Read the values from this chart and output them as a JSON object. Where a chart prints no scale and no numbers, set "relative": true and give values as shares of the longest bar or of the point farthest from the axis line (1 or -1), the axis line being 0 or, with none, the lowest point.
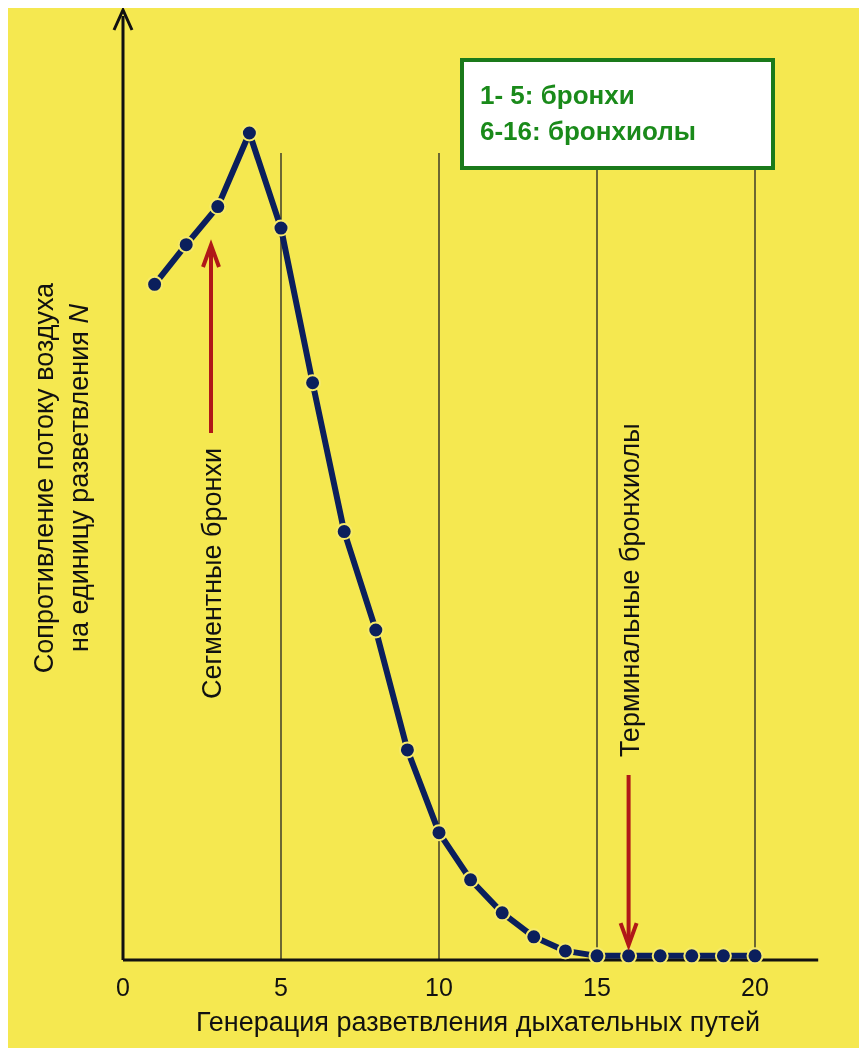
{
  "chart_data": {
    "type": "line",
    "relative": true,
    "xlabel": "Генерация разветвления дыхательных путей",
    "ylabel": "Сопротивление потоку воздуха на единицу разветвления N",
    "x": [
      1,
      2,
      3,
      4,
      5,
      6,
      7,
      8,
      9,
      10,
      11,
      12,
      13,
      14,
      15,
      16,
      17,
      18,
      19,
      20
    ],
    "series": [
      {
        "color": "#0b1f5c",
        "values": [
          0.817,
          0.865,
          0.911,
          1,
          0.885,
          0.698,
          0.518,
          0.399,
          0.254,
          0.154,
          0.097,
          0.057,
          0.028,
          0.011,
          0.005,
          0.005,
          0.005,
          0.005,
          0.005,
          0.005
        ]
      }
    ],
    "xlim": [
      0,
      22
    ],
    "xticks": [
      0,
      5,
      10,
      15,
      20
    ],
    "marker": "circle",
    "line_style": "solid",
    "grid": false,
    "legend": false,
    "ref_lines": [
      {
        "axis": "x",
        "value": 5,
        "color": "#222222"
      },
      {
        "axis": "x",
        "value": 10,
        "color": "#222222"
      },
      {
        "axis": "x",
        "value": 15,
        "color": "#222222"
      },
      {
        "axis": "x",
        "value": 20,
        "color": "#222222"
      }
    ],
    "annotations": [
      "Сегментные бронхи",
      {
        "text": "Терминальные бронхиолы",
        "x": 16,
        "y": 0.018
      },
      "1- 5: бронхи",
      "6-16: бронхиолы"
    ]
  }
}
